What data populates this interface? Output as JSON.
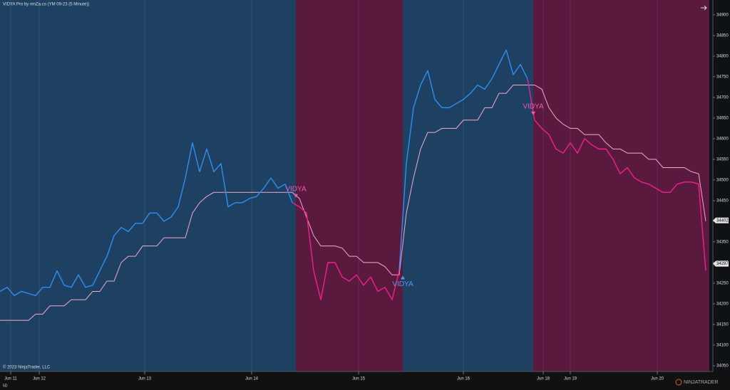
{
  "chart_data": {
    "type": "line",
    "title": "VIDYA Pro by ninZa.co (YM 09-23 (5 Minute))",
    "copyright": "© 2023 NinjaTrader, LLC",
    "brand": "NINJATRADER",
    "timeframe": "5D",
    "xlim": [
      0,
      995
    ],
    "ylim": [
      34036,
      34936
    ],
    "yticks": [
      34050,
      34100,
      34150,
      34200,
      34250,
      34300,
      34350,
      34400,
      34450,
      34500,
      34550,
      34600,
      34650,
      34700,
      34750,
      34800,
      34850,
      34900
    ],
    "xticks": [
      {
        "value": 15,
        "label": "Jun 11"
      },
      {
        "value": 55,
        "label": "Jun 12"
      },
      {
        "value": 203,
        "label": "Jun 13"
      },
      {
        "value": 353,
        "label": "Jun 14"
      },
      {
        "value": 503,
        "label": "Jun 15"
      },
      {
        "value": 650,
        "label": "Jun 16"
      },
      {
        "value": 762,
        "label": "Jun 18"
      },
      {
        "value": 800,
        "label": "Jun 19"
      },
      {
        "value": 922,
        "label": "Jun 20"
      }
    ],
    "regions": [
      {
        "start": 0,
        "end": 415,
        "color": "#1e4063",
        "line": "#2f8fef"
      },
      {
        "start": 415,
        "end": 565,
        "color": "#5a1a3e",
        "line": "#f0208f"
      },
      {
        "start": 565,
        "end": 748,
        "color": "#1e4063",
        "line": "#2f8fef"
      },
      {
        "start": 748,
        "end": 995,
        "color": "#5a1a3e",
        "line": "#f0208f"
      }
    ],
    "x": [
      0,
      10,
      20,
      30,
      40,
      50,
      60,
      70,
      80,
      90,
      100,
      110,
      120,
      130,
      140,
      150,
      160,
      170,
      180,
      190,
      200,
      210,
      220,
      230,
      240,
      250,
      260,
      270,
      280,
      290,
      300,
      310,
      320,
      330,
      340,
      350,
      360,
      370,
      380,
      390,
      400,
      410,
      420,
      430,
      440,
      450,
      460,
      470,
      480,
      490,
      500,
      510,
      520,
      530,
      540,
      550,
      560,
      570,
      580,
      590,
      600,
      610,
      620,
      630,
      640,
      650,
      660,
      670,
      680,
      690,
      700,
      710,
      720,
      730,
      740,
      750,
      760,
      770,
      780,
      790,
      800,
      810,
      820,
      830,
      840,
      850,
      860,
      870,
      880,
      890,
      900,
      910,
      920,
      930,
      940,
      950,
      960,
      970,
      980,
      990
    ],
    "series": [
      {
        "values": [
          34230,
          34240,
          34220,
          34230,
          34225,
          34220,
          34240,
          34240,
          34280,
          34245,
          34240,
          34270,
          34240,
          34245,
          34280,
          34315,
          34365,
          34385,
          34375,
          34395,
          34395,
          34420,
          34420,
          34400,
          34410,
          34435,
          34505,
          34590,
          34520,
          34575,
          34520,
          34540,
          34435,
          34445,
          34445,
          34455,
          34460,
          34480,
          34505,
          34480,
          34490,
          34445,
          34435,
          34420,
          34280,
          34210,
          34300,
          34300,
          34265,
          34255,
          34270,
          34245,
          34265,
          34230,
          34240,
          34210,
          34280,
          34540,
          34675,
          34730,
          34765,
          34695,
          34675,
          34675,
          34685,
          34695,
          34710,
          34730,
          34720,
          34745,
          34780,
          34815,
          34755,
          34780,
          34745,
          34645,
          34625,
          34610,
          34575,
          34565,
          34590,
          34565,
          34600,
          34585,
          34575,
          34575,
          34550,
          34515,
          34530,
          34505,
          34495,
          34490,
          34480,
          34470,
          34470,
          34490,
          34495,
          34495,
          34490,
          34280
        ]
      },
      {
        "color": "#f4a8cf",
        "values": [
          34160,
          34160,
          34160,
          34160,
          34160,
          34175,
          34175,
          34195,
          34195,
          34195,
          34210,
          34210,
          34210,
          34230,
          34230,
          34255,
          34255,
          34300,
          34315,
          34315,
          34340,
          34340,
          34340,
          34360,
          34360,
          34360,
          34360,
          34420,
          34445,
          34460,
          34470,
          34470,
          34470,
          34470,
          34470,
          34470,
          34470,
          34470,
          34470,
          34470,
          34470,
          34470,
          34455,
          34410,
          34365,
          34340,
          34340,
          34340,
          34335,
          34315,
          34315,
          34300,
          34300,
          34300,
          34290,
          34270,
          34270,
          34420,
          34505,
          34575,
          34615,
          34615,
          34625,
          34625,
          34625,
          34645,
          34645,
          34645,
          34675,
          34675,
          34710,
          34710,
          34730,
          34730,
          34730,
          34730,
          34720,
          34675,
          34650,
          34635,
          34625,
          34625,
          34610,
          34610,
          34610,
          34590,
          34575,
          34575,
          34565,
          34565,
          34565,
          34550,
          34550,
          34530,
          34530,
          34530,
          34530,
          34520,
          34515,
          34400
        ]
      }
    ],
    "signals": [
      {
        "x": 415,
        "label": "VIDYA",
        "dir": "down",
        "color": "#f05aa8"
      },
      {
        "x": 565,
        "label": "VIDYA",
        "dir": "up",
        "color": "#4a9fef"
      },
      {
        "x": 748,
        "label": "VIDYA",
        "dir": "down",
        "color": "#f05aa8"
      }
    ],
    "price_badges": [
      34402,
      34297
    ]
  }
}
